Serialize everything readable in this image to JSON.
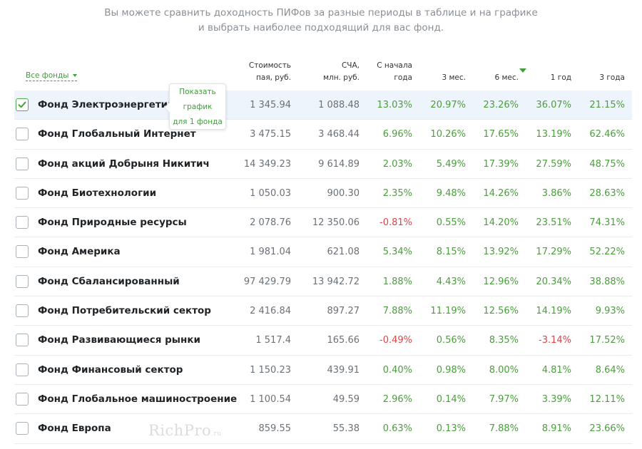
{
  "intro": {
    "line1": "Вы можете сравнить доходность ПИФов за разные периоды в таблице и на графике",
    "line2": "и выбрать наиболее подходящий для вас фонд."
  },
  "filter": {
    "label": "Все фонды"
  },
  "headers": {
    "price": [
      "Стоимость",
      "пая, руб."
    ],
    "nav": [
      "СЧА,",
      "млн. руб."
    ],
    "ytd": [
      "С начала",
      "года"
    ],
    "m3": "3 мес.",
    "m6": "6 мес.",
    "y1": "1 год",
    "y3": "3 года"
  },
  "sorted_column": "6 мес.",
  "tooltip": {
    "lines": [
      "Показать",
      "график",
      "для 1 фонда"
    ]
  },
  "colors": {
    "accent": "#3f9e3a",
    "positive": "#4b9e3d",
    "negative": "#e0434a",
    "selected_row": "#eef4fb"
  },
  "funds": [
    {
      "name": "Фонд Электроэнергетика",
      "checked": true,
      "price": "1 345.94",
      "nav": "1 088.48",
      "ytd": "13.03%",
      "m3": "20.97%",
      "m6": "23.26%",
      "y1": "36.07%",
      "y3": "21.15%"
    },
    {
      "name": "Фонд Глобальный Интернет",
      "checked": false,
      "price": "3 475.15",
      "nav": "3 468.44",
      "ytd": "6.96%",
      "m3": "10.26%",
      "m6": "17.65%",
      "y1": "13.19%",
      "y3": "62.46%"
    },
    {
      "name": "Фонд акций Добрыня Никитич",
      "checked": false,
      "price": "14 349.23",
      "nav": "9 614.89",
      "ytd": "2.03%",
      "m3": "5.49%",
      "m6": "17.39%",
      "y1": "27.59%",
      "y3": "48.75%"
    },
    {
      "name": "Фонд Биотехнологии",
      "checked": false,
      "price": "1 050.03",
      "nav": "900.30",
      "ytd": "2.35%",
      "m3": "9.48%",
      "m6": "14.26%",
      "y1": "3.86%",
      "y3": "28.63%"
    },
    {
      "name": "Фонд Природные ресурсы",
      "checked": false,
      "price": "2 078.76",
      "nav": "12 350.06",
      "ytd": "-0.81%",
      "m3": "0.55%",
      "m6": "14.20%",
      "y1": "23.51%",
      "y3": "74.31%"
    },
    {
      "name": "Фонд Америка",
      "checked": false,
      "price": "1 981.04",
      "nav": "621.08",
      "ytd": "5.34%",
      "m3": "8.15%",
      "m6": "13.92%",
      "y1": "17.29%",
      "y3": "52.22%"
    },
    {
      "name": "Фонд Сбалансированный",
      "checked": false,
      "price": "97 429.79",
      "nav": "13 942.72",
      "ytd": "1.88%",
      "m3": "4.43%",
      "m6": "12.96%",
      "y1": "20.34%",
      "y3": "38.88%"
    },
    {
      "name": "Фонд Потребительский сектор",
      "checked": false,
      "price": "2 416.84",
      "nav": "897.27",
      "ytd": "7.88%",
      "m3": "11.19%",
      "m6": "12.56%",
      "y1": "14.19%",
      "y3": "9.93%"
    },
    {
      "name": "Фонд Развивающиеся рынки",
      "checked": false,
      "price": "1 517.4",
      "nav": "165.66",
      "ytd": "-0.49%",
      "m3": "0.56%",
      "m6": "8.35%",
      "y1": "-3.14%",
      "y3": "17.52%"
    },
    {
      "name": "Фонд Финансовый сектор",
      "checked": false,
      "price": "1 150.23",
      "nav": "439.91",
      "ytd": "0.40%",
      "m3": "0.98%",
      "m6": "8.00%",
      "y1": "4.81%",
      "y3": "8.64%"
    },
    {
      "name": "Фонд Глобальное машиностроение",
      "checked": false,
      "price": "1 100.54",
      "nav": "49.59",
      "ytd": "2.96%",
      "m3": "0.14%",
      "m6": "7.97%",
      "y1": "3.39%",
      "y3": "12.11%"
    },
    {
      "name": "Фонд Европа",
      "checked": false,
      "price": "859.55",
      "nav": "55.38",
      "ytd": "0.63%",
      "m3": "0.13%",
      "m6": "7.88%",
      "y1": "8.91%",
      "y3": "23.66%"
    }
  ],
  "watermark": {
    "text": "RichPro",
    "suffix": ".ru"
  }
}
